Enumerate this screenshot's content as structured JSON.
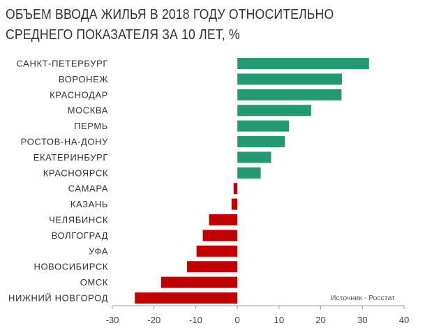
{
  "chart_data": {
    "type": "bar",
    "orientation": "horizontal",
    "title_lines": [
      "ОБЪЕМ ВВОДА ЖИЛЬЯ В 2018 ГОДУ ОТНОСИТЕЛЬНО",
      "СРЕДНЕГО ПОКАЗАТЕЛЯ ЗА 10 ЛЕТ, %"
    ],
    "categories": [
      "САНКТ-ПЕТЕРБУРГ",
      "ВОРОНЕЖ",
      "КРАСНОДАР",
      "МОСКВА",
      "ПЕРМЬ",
      "РОСТОВ-НА-ДОНУ",
      "ЕКАТЕРИНБУРГ",
      "КРАСНОЯРСК",
      "САМАРА",
      "КАЗАНЬ",
      "ЧЕЛЯБИНСК",
      "ВОЛГОГРАД",
      "УФА",
      "НОВОСИБИРСК",
      "ОМСК",
      "НИЖНИЙ НОВГОРОД"
    ],
    "values": [
      31.6,
      25.1,
      25.0,
      17.7,
      12.4,
      11.4,
      8.1,
      5.6,
      -0.9,
      -1.4,
      -6.8,
      -8.3,
      -9.8,
      -12.1,
      -18.3,
      -24.6
    ],
    "xlim": [
      -30,
      40
    ],
    "xticks": [
      -30,
      -20,
      -10,
      0,
      10,
      20,
      30,
      40
    ],
    "grid": false,
    "colors": {
      "positive": "#249a72",
      "negative": "#c00000"
    },
    "annotation": "Источник - Росстат"
  }
}
